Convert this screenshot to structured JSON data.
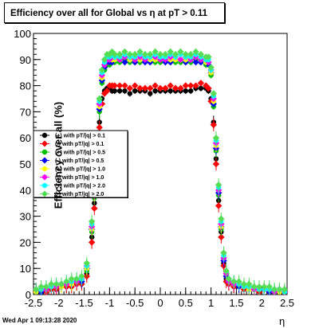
{
  "title": "Efficiency over all for Global vs   η at pT > 0.11",
  "footer": "Wed Apr  1 09:13:28 2020",
  "chart_data": {
    "type": "scatter",
    "title": "Efficiency over all for Global vs   η at pT > 0.11",
    "xlabel": "η",
    "ylabel": "Efficiency over all (%)",
    "xlim": [
      -2.5,
      2.5
    ],
    "ylim": [
      0,
      100
    ],
    "x_ticks": [
      "-2.5",
      "-2",
      "-1.5",
      "-1",
      "-0.5",
      "0",
      "0.5",
      "1",
      "1.5",
      "2",
      "2.5"
    ],
    "y_ticks": [
      "0",
      "10",
      "20",
      "30",
      "40",
      "50",
      "60",
      "70",
      "80",
      "90",
      "100"
    ],
    "grid": false,
    "legend_position": "left-middle",
    "x": [
      -2.45,
      -2.35,
      -2.25,
      -2.15,
      -2.05,
      -1.95,
      -1.85,
      -1.75,
      -1.65,
      -1.55,
      -1.45,
      -1.35,
      -1.3,
      -1.25,
      -1.2,
      -1.15,
      -1.1,
      -1.05,
      -1.0,
      -0.95,
      -0.9,
      -0.8,
      -0.7,
      -0.6,
      -0.5,
      -0.4,
      -0.3,
      -0.2,
      -0.1,
      0.0,
      0.1,
      0.2,
      0.3,
      0.4,
      0.5,
      0.6,
      0.7,
      0.8,
      0.9,
      0.95,
      1.0,
      1.05,
      1.1,
      1.15,
      1.2,
      1.25,
      1.3,
      1.35,
      1.45,
      1.55,
      1.65,
      1.75,
      1.85,
      1.95,
      2.05,
      2.15,
      2.25,
      2.35,
      2.45
    ],
    "series": [
      {
        "name": "(+) with pT/|q| > 0.1",
        "color": "#000000",
        "values": [
          1,
          1,
          2,
          2,
          2,
          3,
          3,
          4,
          4,
          5,
          8,
          22,
          35,
          52,
          66,
          75,
          78,
          79,
          79,
          78,
          78,
          78,
          78,
          77,
          78,
          78,
          78,
          77,
          78,
          78,
          78,
          78,
          78,
          78,
          78,
          78,
          79,
          79,
          79,
          78,
          75,
          66,
          52,
          36,
          24,
          12,
          6,
          4,
          3,
          3,
          2,
          2,
          2,
          2,
          2,
          1,
          1,
          1,
          1
        ]
      },
      {
        "name": "(-) with pT/|q| > 0.1",
        "color": "#ff0000",
        "values": [
          1,
          2,
          1,
          2,
          2,
          3,
          3,
          3,
          4,
          4,
          7,
          20,
          33,
          50,
          64,
          73,
          77,
          78,
          80,
          80,
          80,
          80,
          80,
          79,
          80,
          79,
          79,
          79,
          80,
          79,
          79,
          80,
          79,
          79,
          80,
          80,
          80,
          81,
          80,
          79,
          74,
          65,
          50,
          34,
          22,
          11,
          5,
          4,
          3,
          3,
          2,
          2,
          2,
          1,
          2,
          1,
          1,
          1,
          1
        ]
      },
      {
        "name": "(+) with pT/|q| > 0.5",
        "color": "#00c000",
        "values": [
          1,
          2,
          2,
          3,
          3,
          3,
          4,
          4,
          5,
          5,
          9,
          24,
          37,
          55,
          70,
          81,
          86,
          88,
          88,
          89,
          89,
          89,
          90,
          89,
          89,
          89,
          90,
          89,
          89,
          89,
          90,
          89,
          89,
          89,
          89,
          89,
          90,
          89,
          88,
          88,
          84,
          72,
          55,
          38,
          25,
          13,
          7,
          5,
          4,
          3,
          3,
          2,
          2,
          2,
          2,
          2,
          1,
          1,
          1
        ]
      },
      {
        "name": "(-) with pT/|q| > 0.5",
        "color": "#0000ff",
        "values": [
          2,
          1,
          2,
          3,
          3,
          4,
          4,
          5,
          5,
          5,
          10,
          25,
          38,
          56,
          71,
          82,
          87,
          89,
          89,
          89,
          90,
          90,
          89,
          90,
          89,
          90,
          89,
          89,
          90,
          90,
          89,
          89,
          90,
          90,
          89,
          90,
          89,
          89,
          89,
          88,
          85,
          73,
          56,
          39,
          26,
          13,
          7,
          5,
          4,
          3,
          3,
          3,
          2,
          2,
          2,
          1,
          1,
          2,
          1
        ]
      },
      {
        "name": "(+) with pT/|q| > 1.0",
        "color": "#ffff00",
        "values": [
          1,
          2,
          2,
          3,
          3,
          3,
          4,
          4,
          5,
          6,
          10,
          25,
          38,
          57,
          72,
          83,
          88,
          90,
          90,
          90,
          90,
          90,
          91,
          90,
          90,
          90,
          91,
          90,
          90,
          90,
          91,
          90,
          90,
          90,
          90,
          90,
          91,
          90,
          89,
          89,
          85,
          74,
          57,
          40,
          26,
          14,
          8,
          5,
          4,
          4,
          3,
          2,
          2,
          2,
          2,
          2,
          2,
          1,
          1
        ]
      },
      {
        "name": "(-) with pT/|q| > 1.0",
        "color": "#ff00ff",
        "values": [
          2,
          2,
          2,
          3,
          3,
          4,
          4,
          5,
          5,
          6,
          11,
          26,
          39,
          58,
          73,
          84,
          88,
          90,
          90,
          91,
          91,
          90,
          91,
          91,
          90,
          91,
          90,
          91,
          91,
          90,
          90,
          91,
          91,
          90,
          91,
          90,
          91,
          90,
          90,
          89,
          86,
          75,
          58,
          40,
          27,
          14,
          8,
          5,
          4,
          4,
          3,
          3,
          2,
          2,
          2,
          2,
          1,
          2,
          1
        ]
      },
      {
        "name": "(+) with pT/|q| > 2.0",
        "color": "#00ffff",
        "values": [
          2,
          2,
          3,
          3,
          4,
          4,
          5,
          5,
          6,
          6,
          11,
          27,
          40,
          59,
          74,
          85,
          89,
          91,
          91,
          92,
          91,
          91,
          92,
          91,
          91,
          92,
          91,
          91,
          92,
          91,
          91,
          92,
          91,
          92,
          91,
          91,
          92,
          91,
          90,
          90,
          86,
          76,
          59,
          41,
          28,
          15,
          9,
          6,
          5,
          4,
          3,
          3,
          3,
          2,
          2,
          2,
          2,
          2,
          1
        ]
      },
      {
        "name": "(-) with pT/|q| > 2.0",
        "color": "#55dd55",
        "values": [
          2,
          3,
          3,
          4,
          4,
          4,
          5,
          6,
          6,
          7,
          12,
          28,
          41,
          60,
          75,
          86,
          90,
          92,
          92,
          93,
          92,
          92,
          93,
          92,
          92,
          93,
          92,
          92,
          93,
          92,
          92,
          93,
          92,
          93,
          92,
          92,
          93,
          92,
          91,
          91,
          87,
          77,
          60,
          42,
          29,
          16,
          9,
          6,
          5,
          5,
          4,
          4,
          3,
          3,
          3,
          3,
          2,
          2,
          2
        ]
      }
    ]
  }
}
